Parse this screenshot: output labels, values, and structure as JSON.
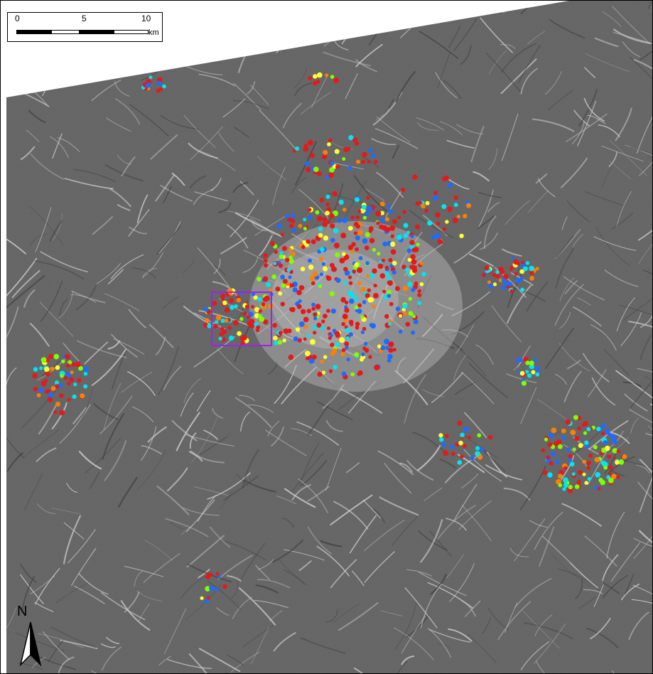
{
  "scale_bar": {
    "ticks": [
      "0",
      "5",
      "10"
    ],
    "unit": "km"
  },
  "north_arrow": {
    "label": "N"
  },
  "colors": {
    "point_classes": [
      "#e31a1c",
      "#ff7f00",
      "#ffff33",
      "#7fff00",
      "#00e5ee",
      "#1e6bff"
    ],
    "highlight_box": "#a020f0",
    "terrain_base": "#5e5e5e",
    "terrain_ridge": "#e6e6e6"
  },
  "map": {
    "highlight_region": "study-area-subset",
    "icon": "north-arrow-icon"
  }
}
